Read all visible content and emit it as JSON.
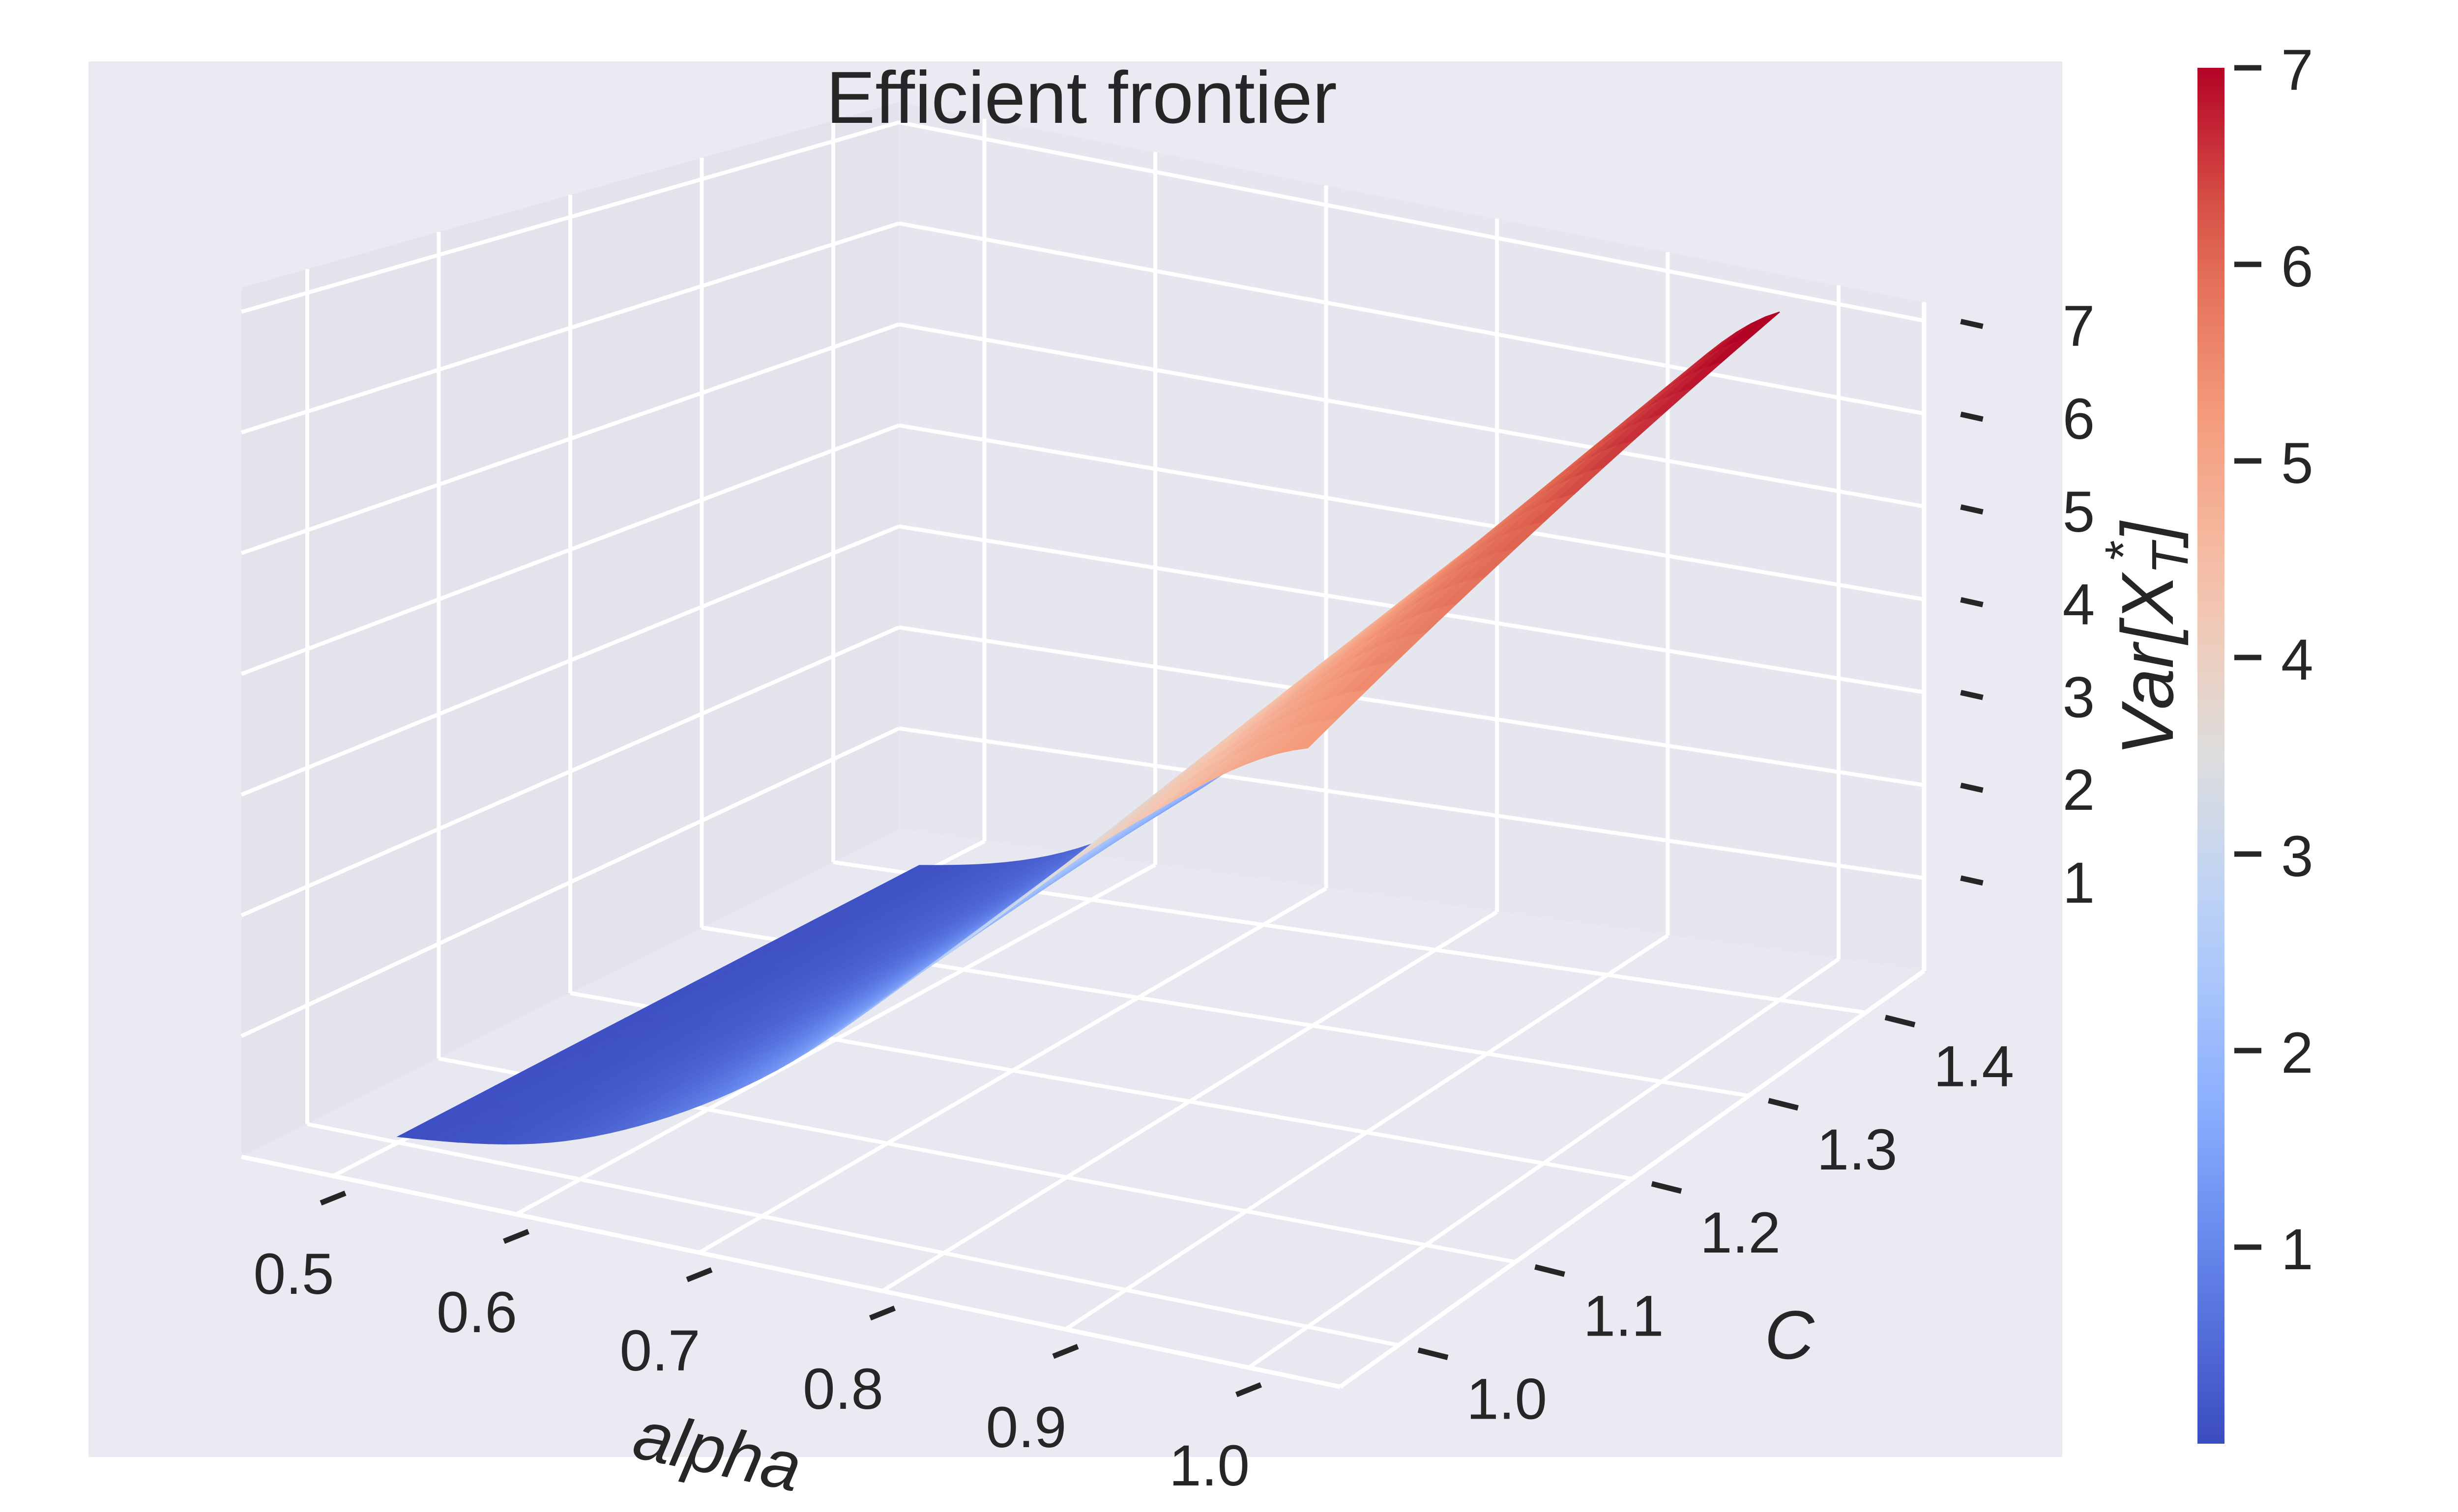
{
  "chart_data": {
    "type": "surface",
    "title": "Efficient frontier",
    "x_axis": {
      "label": "alpha",
      "range": [
        0.5,
        1.0
      ],
      "ticks": [
        0.5,
        0.6,
        0.7,
        0.8,
        0.9,
        1.0
      ],
      "tick_labels": [
        "0.5",
        "0.6",
        "0.7",
        "0.8",
        "0.9",
        "1.0"
      ]
    },
    "y_axis": {
      "label": "C",
      "range": [
        1.0,
        1.4
      ],
      "ticks": [
        1.0,
        1.1,
        1.2,
        1.3,
        1.4
      ],
      "tick_labels": [
        "1.0",
        "1.1",
        "1.2",
        "1.3",
        "1.4"
      ]
    },
    "z_axis": {
      "label": "",
      "range": [
        0,
        7.2
      ],
      "ticks": [
        1,
        2,
        3,
        4,
        5,
        6,
        7
      ],
      "tick_labels": [
        "1",
        "2",
        "3",
        "4",
        "5",
        "6",
        "7"
      ]
    },
    "surface": {
      "description_of_values": "Var increases with alpha (steeply) and with C (mildly)",
      "alpha_samples": [
        0.5,
        0.6,
        0.7,
        0.8,
        0.9,
        1.0
      ],
      "c_samples": [
        1.0,
        1.1,
        1.2,
        1.3,
        1.4
      ],
      "z_values": [
        [
          0.05,
          0.06,
          0.07,
          0.08,
          0.09
        ],
        [
          0.35,
          0.4,
          0.45,
          0.5,
          0.55
        ],
        [
          1.2,
          1.35,
          1.5,
          1.65,
          1.8
        ],
        [
          2.6,
          2.85,
          3.1,
          3.35,
          3.6
        ],
        [
          4.1,
          4.45,
          4.8,
          5.15,
          5.5
        ],
        [
          5.2,
          5.7,
          6.2,
          6.7,
          7.2
        ]
      ]
    },
    "colorbar": {
      "label": "Var[X_T*]",
      "colormap": "coolwarm",
      "range": [
        0,
        7
      ],
      "ticks": [
        1,
        2,
        3,
        4,
        5,
        6,
        7
      ],
      "tick_labels": [
        "1",
        "2",
        "3",
        "4",
        "5",
        "6",
        "7"
      ]
    },
    "grid": true,
    "pane_color": "#eaeaf2",
    "grid_color": "#ffffff"
  }
}
